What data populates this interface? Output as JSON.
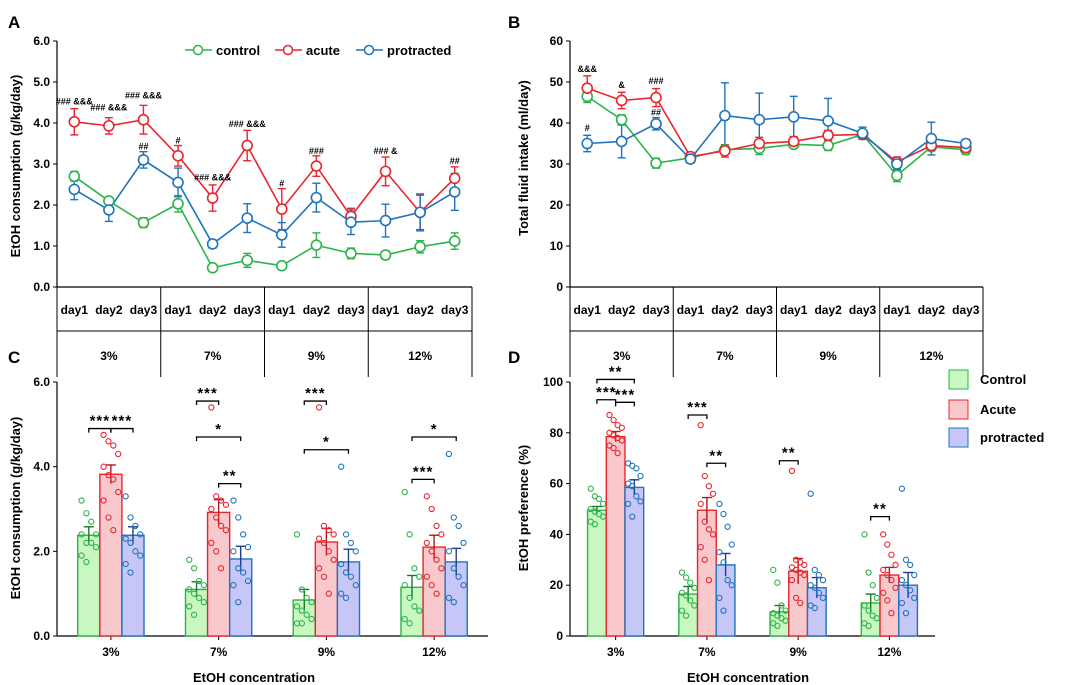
{
  "colors": {
    "control": "#2db34a",
    "acute": "#e8262d",
    "protracted": "#1f74bd",
    "fill_control": "#c8f7c1",
    "fill_acute": "#f9c8cc",
    "fill_protracted": "#c7c7f7"
  },
  "chart_data": [
    {
      "panel": "A",
      "type": "line",
      "ylabel": "EtOH consumption (g/kg/day)",
      "ylim": [
        0,
        6
      ],
      "yticks": [
        "0.0",
        "1.0",
        "2.0",
        "3.0",
        "4.0",
        "5.0",
        "6.0"
      ],
      "days": [
        "day1",
        "day2",
        "day3"
      ],
      "concentrations": [
        "3%",
        "7%",
        "9%",
        "12%"
      ],
      "series": [
        {
          "key": "control",
          "name": "control",
          "values": [
            2.7,
            2.1,
            1.57,
            2.03,
            0.47,
            0.65,
            0.52,
            1.02,
            0.82,
            0.78,
            0.98,
            1.12
          ],
          "errors": [
            0.12,
            0.08,
            0.12,
            0.2,
            0.05,
            0.17,
            0.05,
            0.3,
            0.13,
            0.1,
            0.15,
            0.2
          ]
        },
        {
          "key": "acute",
          "name": "acute",
          "values": [
            4.03,
            3.93,
            4.08,
            3.2,
            2.17,
            3.45,
            1.9,
            2.95,
            1.72,
            2.82,
            1.82,
            2.65
          ],
          "errors": [
            0.32,
            0.2,
            0.35,
            0.25,
            0.32,
            0.37,
            0.5,
            0.25,
            0.2,
            0.35,
            0.42,
            0.28
          ]
        },
        {
          "key": "protracted",
          "name": "protracted",
          "values": [
            2.38,
            1.88,
            3.1,
            2.55,
            1.05,
            1.68,
            1.27,
            2.18,
            1.58,
            1.62,
            1.82,
            2.32
          ],
          "errors": [
            0.25,
            0.28,
            0.2,
            0.35,
            0.1,
            0.35,
            0.3,
            0.35,
            0.3,
            0.4,
            0.45,
            0.45
          ]
        }
      ],
      "annotations": [
        {
          "i": 0,
          "y": 4.45,
          "text": "### &&&"
        },
        {
          "i": 1,
          "y": 4.3,
          "text": "### &&&"
        },
        {
          "i": 2,
          "y": 4.6,
          "text": "### &&&"
        },
        {
          "i": 2,
          "y": 3.35,
          "text": "##"
        },
        {
          "i": 3,
          "y": 3.5,
          "text": "#"
        },
        {
          "i": 4,
          "y": 2.6,
          "text": "### &&&"
        },
        {
          "i": 5,
          "y": 3.9,
          "text": "### &&&"
        },
        {
          "i": 6,
          "y": 2.45,
          "text": "#"
        },
        {
          "i": 7,
          "y": 3.25,
          "text": "###"
        },
        {
          "i": 9,
          "y": 3.25,
          "text": "### &"
        },
        {
          "i": 11,
          "y": 3.0,
          "text": "##"
        }
      ]
    },
    {
      "panel": "B",
      "type": "line",
      "ylabel": "Total fluid intake (ml/day)",
      "ylim": [
        0,
        60
      ],
      "yticks": [
        "0",
        "10",
        "20",
        "30",
        "40",
        "50",
        "60"
      ],
      "days": [
        "day1",
        "day2",
        "day3"
      ],
      "concentrations": [
        "3%",
        "7%",
        "9%",
        "12%"
      ],
      "series": [
        {
          "key": "control",
          "name": "control",
          "values": [
            46.5,
            40.8,
            30.2,
            31.5,
            33.5,
            33.8,
            34.8,
            34.5,
            37.2,
            27.2,
            34.2,
            33.5
          ],
          "errors": [
            1.5,
            1.2,
            1.2,
            1.0,
            1.0,
            1.5,
            1.0,
            1.2,
            1.0,
            1.5,
            1.0,
            1.2
          ]
        },
        {
          "key": "acute",
          "name": "acute",
          "values": [
            48.5,
            45.5,
            46.2,
            31.8,
            33.2,
            35.0,
            35.5,
            37.0,
            37.2,
            30.5,
            34.5,
            34.0
          ],
          "errors": [
            3.0,
            2.0,
            2.2,
            1.0,
            1.5,
            1.5,
            1.2,
            1.2,
            1.0,
            1.2,
            1.0,
            1.0
          ]
        },
        {
          "key": "protracted",
          "name": "protracted",
          "values": [
            35.0,
            35.5,
            39.8,
            31.2,
            41.8,
            40.8,
            41.5,
            40.5,
            37.5,
            30.0,
            36.2,
            35.0
          ],
          "errors": [
            2.0,
            4.0,
            1.5,
            1.0,
            8.0,
            6.5,
            5.0,
            5.5,
            1.5,
            1.5,
            4.0,
            1.0
          ]
        }
      ],
      "annotations": [
        {
          "i": 0,
          "y": 52.5,
          "text": "&&&"
        },
        {
          "i": 0,
          "y": 38.0,
          "text": "#"
        },
        {
          "i": 1,
          "y": 48.5,
          "text": "&"
        },
        {
          "i": 2,
          "y": 49.5,
          "text": "###"
        },
        {
          "i": 2,
          "y": 41.8,
          "text": "##"
        }
      ]
    },
    {
      "panel": "C",
      "type": "bar",
      "ylabel": "EtOH consumption (g/kg/day)",
      "xlabel": "EtOH concentration",
      "ylim": [
        0,
        6
      ],
      "yticks": [
        "0.0",
        "2.0",
        "4.0",
        "6.0"
      ],
      "categories": [
        "3%",
        "7%",
        "9%",
        "12%"
      ],
      "series": [
        {
          "key": "control",
          "name": "Control",
          "values": [
            2.38,
            1.1,
            0.85,
            1.15
          ],
          "errors": [
            0.2,
            0.18,
            0.25,
            0.28
          ]
        },
        {
          "key": "acute",
          "name": "Acute",
          "values": [
            3.82,
            2.92,
            2.22,
            2.1
          ],
          "errors": [
            0.22,
            0.3,
            0.32,
            0.28
          ]
        },
        {
          "key": "protracted",
          "name": "protracted",
          "values": [
            2.38,
            1.82,
            1.75,
            1.75
          ],
          "errors": [
            0.2,
            0.3,
            0.3,
            0.32
          ]
        }
      ],
      "points": [
        [
          [
            3.2,
            2.9,
            2.7,
            2.4,
            2.4,
            2.2,
            2.2,
            2.1,
            1.9,
            1.75
          ],
          [
            4.75,
            4.6,
            4.5,
            4.3,
            4.0,
            3.8,
            3.7,
            3.4,
            3.2,
            2.8,
            2.5
          ],
          [
            3.3,
            2.8,
            2.6,
            2.4,
            2.3,
            2.2,
            2.0,
            1.9,
            1.7,
            1.5
          ]
        ],
        [
          [
            1.8,
            1.6,
            1.3,
            1.2,
            1.1,
            1.0,
            0.9,
            0.8,
            0.7,
            0.5
          ],
          [
            5.4,
            3.3,
            3.2,
            3.1,
            3.0,
            2.8,
            2.6,
            2.5,
            2.2,
            2.0,
            1.6
          ],
          [
            3.2,
            2.8,
            2.4,
            2.1,
            2.0,
            1.6,
            1.5,
            1.3,
            1.2,
            0.8
          ]
        ],
        [
          [
            2.4,
            1.1,
            0.9,
            0.8,
            0.7,
            0.6,
            0.5,
            0.4,
            0.3,
            0.3
          ],
          [
            5.4,
            2.6,
            2.5,
            2.4,
            2.3,
            2.2,
            2.0,
            1.8,
            1.6,
            1.4,
            1.0
          ],
          [
            4.0,
            2.4,
            2.2,
            2.0,
            1.7,
            1.5,
            1.4,
            1.2,
            1.0,
            0.9
          ]
        ],
        [
          [
            3.4,
            2.4,
            1.6,
            1.4,
            1.2,
            0.9,
            0.7,
            0.6,
            0.4,
            0.3
          ],
          [
            3.3,
            3.0,
            2.6,
            2.4,
            2.2,
            2.0,
            1.8,
            1.6,
            1.4,
            1.2,
            1.0
          ],
          [
            4.3,
            2.8,
            2.6,
            2.2,
            2.0,
            1.6,
            1.4,
            1.2,
            0.9,
            0.8
          ]
        ]
      ],
      "significance": [
        {
          "g": 0,
          "a": 0,
          "b": 1,
          "y": 4.9,
          "text": "***"
        },
        {
          "g": 0,
          "a": 1,
          "b": 2,
          "y": 4.9,
          "text": "***"
        },
        {
          "g": 1,
          "a": 0,
          "b": 1,
          "y": 5.55,
          "text": "***"
        },
        {
          "g": 1,
          "a": 0,
          "b": 2,
          "y": 4.7,
          "text": "*"
        },
        {
          "g": 1,
          "a": 1,
          "b": 2,
          "y": 3.6,
          "text": "**"
        },
        {
          "g": 2,
          "a": 0,
          "b": 1,
          "y": 5.55,
          "text": "***"
        },
        {
          "g": 2,
          "a": 0,
          "b": 2,
          "y": 4.4,
          "text": "*"
        },
        {
          "g": 3,
          "a": 0,
          "b": 1,
          "y": 3.7,
          "text": "***"
        },
        {
          "g": 3,
          "a": 0,
          "b": 2,
          "y": 4.7,
          "text": "*"
        }
      ]
    },
    {
      "panel": "D",
      "type": "bar",
      "ylabel": "EtOH preference (%)",
      "xlabel": "EtOH concentration",
      "ylim": [
        0,
        100
      ],
      "yticks": [
        "0",
        "20",
        "40",
        "60",
        "80",
        "100"
      ],
      "categories": [
        "3%",
        "7%",
        "9%",
        "12%"
      ],
      "legend": [
        "Control",
        "Acute",
        "protracted"
      ],
      "series": [
        {
          "key": "control",
          "name": "Control",
          "values": [
            49.5,
            16.5,
            9.5,
            13
          ],
          "errors": [
            1.5,
            3,
            2.5,
            3.5
          ]
        },
        {
          "key": "acute",
          "name": "Acute",
          "values": [
            78.5,
            49.5,
            25.5,
            24
          ],
          "errors": [
            2,
            5,
            5,
            3
          ]
        },
        {
          "key": "protracted",
          "name": "protracted",
          "values": [
            58.5,
            28,
            19,
            20
          ],
          "errors": [
            3,
            4.5,
            4,
            5
          ]
        }
      ],
      "points": [
        [
          [
            58,
            55,
            54,
            52,
            50,
            49,
            48,
            47,
            45,
            44
          ],
          [
            87,
            85,
            83,
            82,
            80,
            79,
            78,
            77,
            75,
            74,
            72
          ],
          [
            68,
            67,
            66,
            63,
            60,
            59,
            55,
            53,
            52,
            47
          ]
        ],
        [
          [
            25,
            23,
            21,
            19,
            17,
            16,
            14,
            12,
            10,
            8
          ],
          [
            83,
            63,
            59,
            56,
            52,
            45,
            42,
            40,
            35,
            30,
            22
          ],
          [
            52,
            48,
            43,
            36,
            33,
            29,
            22,
            20,
            15,
            10
          ]
        ],
        [
          [
            26,
            21,
            12,
            10,
            9,
            8,
            7,
            6,
            5,
            4
          ],
          [
            65,
            30,
            29,
            28,
            27,
            26,
            25,
            24,
            22,
            15,
            13
          ],
          [
            56,
            26,
            24,
            22,
            20,
            19,
            17,
            15,
            12,
            11
          ]
        ],
        [
          [
            40,
            25,
            20,
            15,
            12,
            10,
            8,
            7,
            5,
            4
          ],
          [
            40,
            36,
            32,
            28,
            26,
            24,
            22,
            19,
            17,
            14,
            9
          ],
          [
            58,
            30,
            28,
            24,
            22,
            20,
            18,
            15,
            13,
            9
          ]
        ]
      ],
      "significance": [
        {
          "g": 0,
          "a": 0,
          "b": 2,
          "y": 101,
          "text": "**"
        },
        {
          "g": 0,
          "a": 0,
          "b": 1,
          "y": 93,
          "text": "***"
        },
        {
          "g": 0,
          "a": 1,
          "b": 2,
          "y": 92,
          "text": "***"
        },
        {
          "g": 1,
          "a": 0,
          "b": 1,
          "y": 87,
          "text": "***"
        },
        {
          "g": 1,
          "a": 1,
          "b": 2,
          "y": 68,
          "text": "**"
        },
        {
          "g": 2,
          "a": 0,
          "b": 1,
          "y": 69,
          "text": "**"
        },
        {
          "g": 3,
          "a": 0,
          "b": 1,
          "y": 47,
          "text": "**"
        }
      ]
    }
  ]
}
